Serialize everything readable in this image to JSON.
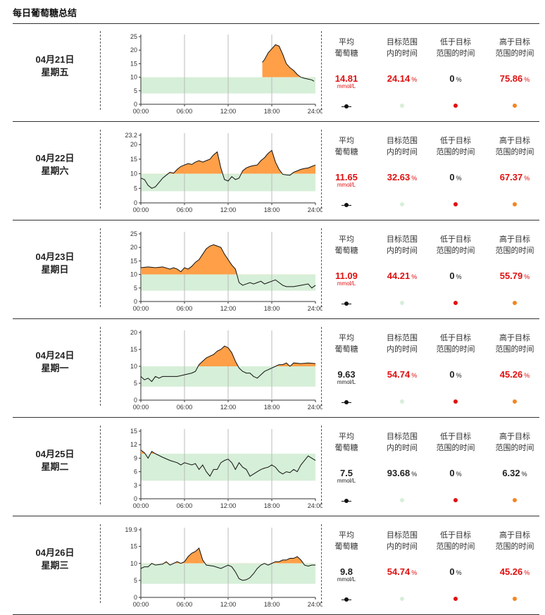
{
  "title": "每日葡萄糖总结",
  "headers": {
    "avg": [
      "平均",
      "葡萄糖"
    ],
    "in_range": [
      "目标范围",
      "内的时间"
    ],
    "below": [
      "低于目标",
      "范围的时间"
    ],
    "above": [
      "高于目标",
      "范围的时间"
    ]
  },
  "units": {
    "mmol": "mmol/L",
    "pct": "%"
  },
  "colors": {
    "above_fill": "#ff9f47",
    "target_band": "#d6efd8",
    "curve": "#111111",
    "alert_red": "#e01010",
    "in_range_dot": "#d6efd8",
    "below_dot": "#e01010",
    "above_dot": "#f5851f"
  },
  "days": [
    {
      "date": "04月21日",
      "weekday": "星期五",
      "avg": "14.81",
      "avg_alert": true,
      "in_range": "24.14",
      "in_range_alert": true,
      "below": "0",
      "above": "75.86",
      "above_alert": true
    },
    {
      "date": "04月22日",
      "weekday": "星期六",
      "avg": "11.65",
      "avg_alert": true,
      "in_range": "32.63",
      "in_range_alert": true,
      "below": "0",
      "above": "67.37",
      "above_alert": true
    },
    {
      "date": "04月23日",
      "weekday": "星期日",
      "avg": "11.09",
      "avg_alert": true,
      "in_range": "44.21",
      "in_range_alert": true,
      "below": "0",
      "above": "55.79",
      "above_alert": true
    },
    {
      "date": "04月24日",
      "weekday": "星期一",
      "avg": "9.63",
      "avg_alert": false,
      "in_range": "54.74",
      "in_range_alert": true,
      "below": "0",
      "above": "45.26",
      "above_alert": true
    },
    {
      "date": "04月25日",
      "weekday": "星期二",
      "avg": "7.5",
      "avg_alert": false,
      "in_range": "93.68",
      "in_range_alert": false,
      "below": "0",
      "above": "6.32",
      "above_alert": false
    },
    {
      "date": "04月26日",
      "weekday": "星期三",
      "avg": "9.8",
      "avg_alert": false,
      "in_range": "54.74",
      "in_range_alert": true,
      "below": "0",
      "above": "45.26",
      "above_alert": true
    }
  ],
  "chart_data": [
    {
      "type": "area",
      "xlabel": "",
      "ylabel": "",
      "x_ticks": [
        "00:00",
        "06:00",
        "12:00",
        "18:00",
        "24:00"
      ],
      "y_ticks": [
        0,
        5,
        10,
        15,
        20,
        25
      ],
      "ylim": [
        0,
        25
      ],
      "target_range": [
        4,
        10
      ],
      "start_hour": 16.7,
      "points": [
        [
          16.7,
          15.5
        ],
        [
          17.0,
          16.5
        ],
        [
          17.5,
          19.0
        ],
        [
          18.0,
          20.5
        ],
        [
          18.5,
          22.0
        ],
        [
          19.0,
          21.5
        ],
        [
          19.5,
          18.5
        ],
        [
          20.0,
          15.0
        ],
        [
          20.5,
          13.5
        ],
        [
          21.0,
          12.5
        ],
        [
          21.5,
          11.0
        ],
        [
          22.0,
          10.0
        ],
        [
          22.5,
          9.6
        ],
        [
          23.0,
          9.3
        ],
        [
          23.5,
          9.0
        ],
        [
          23.8,
          8.5
        ]
      ]
    },
    {
      "type": "area",
      "xlabel": "",
      "ylabel": "",
      "x_ticks": [
        "00:00",
        "06:00",
        "12:00",
        "18:00",
        "24:00"
      ],
      "y_ticks": [
        0,
        5,
        10,
        15,
        20
      ],
      "y_top_label": "23.2",
      "ylim": [
        0,
        23.2
      ],
      "target_range": [
        4,
        10
      ],
      "points": [
        [
          0,
          8.5
        ],
        [
          0.5,
          8.0
        ],
        [
          1,
          6.0
        ],
        [
          1.5,
          5.0
        ],
        [
          2,
          5.5
        ],
        [
          2.5,
          7.0
        ],
        [
          3,
          8.5
        ],
        [
          3.5,
          9.5
        ],
        [
          4,
          10.5
        ],
        [
          4.5,
          10.2
        ],
        [
          5,
          11.5
        ],
        [
          5.5,
          12.5
        ],
        [
          6,
          13.0
        ],
        [
          6.5,
          13.5
        ],
        [
          7,
          13.2
        ],
        [
          7.5,
          14.0
        ],
        [
          8,
          14.5
        ],
        [
          8.5,
          14.0
        ],
        [
          9,
          14.5
        ],
        [
          9.5,
          15.0
        ],
        [
          10,
          16.5
        ],
        [
          10.5,
          17.5
        ],
        [
          11,
          12.0
        ],
        [
          11.5,
          8.0
        ],
        [
          12,
          7.5
        ],
        [
          12.5,
          9.0
        ],
        [
          13,
          8.0
        ],
        [
          13.5,
          8.5
        ],
        [
          14,
          11.0
        ],
        [
          14.5,
          12.0
        ],
        [
          15,
          12.5
        ],
        [
          15.5,
          12.8
        ],
        [
          16,
          13.0
        ],
        [
          16.5,
          14.5
        ],
        [
          17,
          15.5
        ],
        [
          17.5,
          17.0
        ],
        [
          18,
          18.0
        ],
        [
          18.5,
          14.0
        ],
        [
          19,
          11.5
        ],
        [
          19.5,
          9.8
        ],
        [
          20,
          9.6
        ],
        [
          20.5,
          9.5
        ],
        [
          21,
          10.5
        ],
        [
          21.5,
          11.0
        ],
        [
          22,
          11.5
        ],
        [
          22.5,
          11.8
        ],
        [
          23,
          12.0
        ],
        [
          23.5,
          12.5
        ],
        [
          24,
          13.0
        ]
      ]
    },
    {
      "type": "area",
      "xlabel": "",
      "ylabel": "",
      "x_ticks": [
        "00:00",
        "06:00",
        "12:00",
        "18:00",
        "24:00"
      ],
      "y_ticks": [
        0,
        5,
        10,
        15,
        20,
        25
      ],
      "ylim": [
        0,
        25
      ],
      "target_range": [
        4,
        10
      ],
      "points": [
        [
          0,
          12.5
        ],
        [
          1,
          12.8
        ],
        [
          2,
          12.5
        ],
        [
          3,
          12.8
        ],
        [
          4,
          12.0
        ],
        [
          4.5,
          12.5
        ],
        [
          5,
          12.0
        ],
        [
          5.5,
          11.0
        ],
        [
          6,
          12.5
        ],
        [
          6.5,
          12.0
        ],
        [
          7,
          13.0
        ],
        [
          7.5,
          14.5
        ],
        [
          8,
          15.5
        ],
        [
          8.5,
          17.5
        ],
        [
          9,
          19.5
        ],
        [
          9.5,
          20.5
        ],
        [
          10,
          21.0
        ],
        [
          10.5,
          20.5
        ],
        [
          11,
          20.0
        ],
        [
          11.5,
          17.5
        ],
        [
          12,
          15.5
        ],
        [
          12.5,
          13.5
        ],
        [
          13,
          12.0
        ],
        [
          13.5,
          7.0
        ],
        [
          14,
          6.0
        ],
        [
          14.5,
          6.5
        ],
        [
          15,
          7.0
        ],
        [
          15.5,
          6.5
        ],
        [
          16,
          7.0
        ],
        [
          16.5,
          7.5
        ],
        [
          17,
          6.5
        ],
        [
          17.5,
          7.0
        ],
        [
          18,
          7.5
        ],
        [
          18.5,
          8.0
        ],
        [
          19,
          7.0
        ],
        [
          19.5,
          6.0
        ],
        [
          20,
          5.5
        ],
        [
          21,
          5.5
        ],
        [
          22,
          6.0
        ],
        [
          23,
          6.5
        ],
        [
          23.5,
          5.0
        ],
        [
          24,
          6.0
        ]
      ]
    },
    {
      "type": "area",
      "xlabel": "",
      "ylabel": "",
      "x_ticks": [
        "00:00",
        "06:00",
        "12:00",
        "18:00",
        "24:00"
      ],
      "y_ticks": [
        0,
        5,
        10,
        15,
        20
      ],
      "ylim": [
        0,
        20
      ],
      "target_range": [
        4,
        10
      ],
      "points": [
        [
          0,
          7.0
        ],
        [
          0.5,
          6.0
        ],
        [
          1,
          6.5
        ],
        [
          1.5,
          5.5
        ],
        [
          2,
          7.0
        ],
        [
          2.5,
          6.5
        ],
        [
          3,
          7.0
        ],
        [
          4,
          7.0
        ],
        [
          5,
          7.0
        ],
        [
          6,
          7.5
        ],
        [
          7,
          8.0
        ],
        [
          7.5,
          8.5
        ],
        [
          8,
          10.5
        ],
        [
          8.5,
          11.5
        ],
        [
          9,
          12.5
        ],
        [
          9.5,
          13.0
        ],
        [
          10,
          13.5
        ],
        [
          10.5,
          14.5
        ],
        [
          11,
          15.0
        ],
        [
          11.5,
          16.0
        ],
        [
          12,
          15.5
        ],
        [
          12.5,
          14.0
        ],
        [
          13,
          11.5
        ],
        [
          13.5,
          9.5
        ],
        [
          14,
          8.5
        ],
        [
          14.5,
          8.0
        ],
        [
          15,
          8.0
        ],
        [
          15.5,
          7.0
        ],
        [
          16,
          6.5
        ],
        [
          16.5,
          7.5
        ],
        [
          17,
          8.5
        ],
        [
          17.5,
          9.0
        ],
        [
          18,
          9.5
        ],
        [
          18.5,
          10.0
        ],
        [
          19,
          10.5
        ],
        [
          19.5,
          10.5
        ],
        [
          20,
          11.0
        ],
        [
          20.5,
          10.0
        ],
        [
          21,
          11.0
        ],
        [
          22,
          10.8
        ],
        [
          23,
          11.0
        ],
        [
          24,
          10.8
        ]
      ]
    },
    {
      "type": "area",
      "xlabel": "",
      "ylabel": "",
      "x_ticks": [
        "00:00",
        "06:00",
        "12:00",
        "18:00",
        "24:00"
      ],
      "y_ticks": [
        0,
        3,
        6,
        9,
        12,
        15
      ],
      "ylim": [
        0,
        15
      ],
      "target_range": [
        4,
        10
      ],
      "points": [
        [
          0,
          10.8
        ],
        [
          0.5,
          10.2
        ],
        [
          1,
          9.0
        ],
        [
          1.5,
          10.5
        ],
        [
          2,
          10.0
        ],
        [
          3,
          9.2
        ],
        [
          4,
          8.5
        ],
        [
          5,
          8.0
        ],
        [
          5.5,
          7.5
        ],
        [
          6,
          8.0
        ],
        [
          7,
          7.5
        ],
        [
          7.5,
          7.8
        ],
        [
          8,
          6.5
        ],
        [
          8.5,
          7.5
        ],
        [
          9,
          6.0
        ],
        [
          9.5,
          5.0
        ],
        [
          10,
          6.5
        ],
        [
          10.5,
          6.5
        ],
        [
          11,
          8.0
        ],
        [
          11.5,
          8.5
        ],
        [
          12,
          8.8
        ],
        [
          12.5,
          8.0
        ],
        [
          13,
          6.5
        ],
        [
          13.5,
          8.0
        ],
        [
          14,
          7.0
        ],
        [
          14.5,
          6.5
        ],
        [
          15,
          5.0
        ],
        [
          15.5,
          5.5
        ],
        [
          16,
          6.0
        ],
        [
          16.5,
          6.5
        ],
        [
          17,
          6.8
        ],
        [
          17.5,
          7.0
        ],
        [
          18,
          7.5
        ],
        [
          18.5,
          7.0
        ],
        [
          19,
          6.0
        ],
        [
          19.5,
          5.5
        ],
        [
          20,
          6.0
        ],
        [
          20.5,
          5.8
        ],
        [
          21,
          6.5
        ],
        [
          21.5,
          6.0
        ],
        [
          22,
          7.5
        ],
        [
          22.5,
          8.5
        ],
        [
          23,
          9.5
        ],
        [
          23.5,
          9.0
        ],
        [
          24,
          8.5
        ]
      ]
    },
    {
      "type": "area",
      "xlabel": "",
      "ylabel": "",
      "x_ticks": [
        "00:00",
        "06:00",
        "12:00",
        "18:00",
        "24:00"
      ],
      "y_ticks": [
        0,
        5,
        10,
        15
      ],
      "y_top_label": "19.9",
      "ylim": [
        0,
        19.9
      ],
      "target_range": [
        4,
        10
      ],
      "points": [
        [
          0,
          8.5
        ],
        [
          0.5,
          9.0
        ],
        [
          1,
          9.0
        ],
        [
          1.5,
          10.0
        ],
        [
          2,
          9.5
        ],
        [
          3,
          9.8
        ],
        [
          3.5,
          10.5
        ],
        [
          4,
          9.5
        ],
        [
          4.5,
          10.0
        ],
        [
          5,
          10.5
        ],
        [
          5.5,
          10.0
        ],
        [
          6,
          10.5
        ],
        [
          6.5,
          12.0
        ],
        [
          7,
          13.0
        ],
        [
          7.5,
          13.5
        ],
        [
          8,
          14.5
        ],
        [
          8.5,
          11.0
        ],
        [
          9,
          9.5
        ],
        [
          10,
          9.2
        ],
        [
          11,
          8.5
        ],
        [
          11.5,
          9.0
        ],
        [
          12,
          9.5
        ],
        [
          12.5,
          9.0
        ],
        [
          13,
          7.5
        ],
        [
          13.5,
          5.5
        ],
        [
          14,
          5.0
        ],
        [
          14.5,
          5.2
        ],
        [
          15,
          5.8
        ],
        [
          15.5,
          7.0
        ],
        [
          16,
          8.5
        ],
        [
          16.5,
          9.5
        ],
        [
          17,
          10.0
        ],
        [
          17.5,
          9.5
        ],
        [
          18,
          10.0
        ],
        [
          18.5,
          10.5
        ],
        [
          19,
          10.5
        ],
        [
          19.5,
          11.0
        ],
        [
          20,
          11.0
        ],
        [
          20.5,
          11.5
        ],
        [
          21,
          11.5
        ],
        [
          21.5,
          12.0
        ],
        [
          22,
          11.0
        ],
        [
          22.5,
          9.5
        ],
        [
          23,
          9.2
        ],
        [
          23.5,
          9.5
        ],
        [
          24,
          9.5
        ]
      ]
    }
  ]
}
